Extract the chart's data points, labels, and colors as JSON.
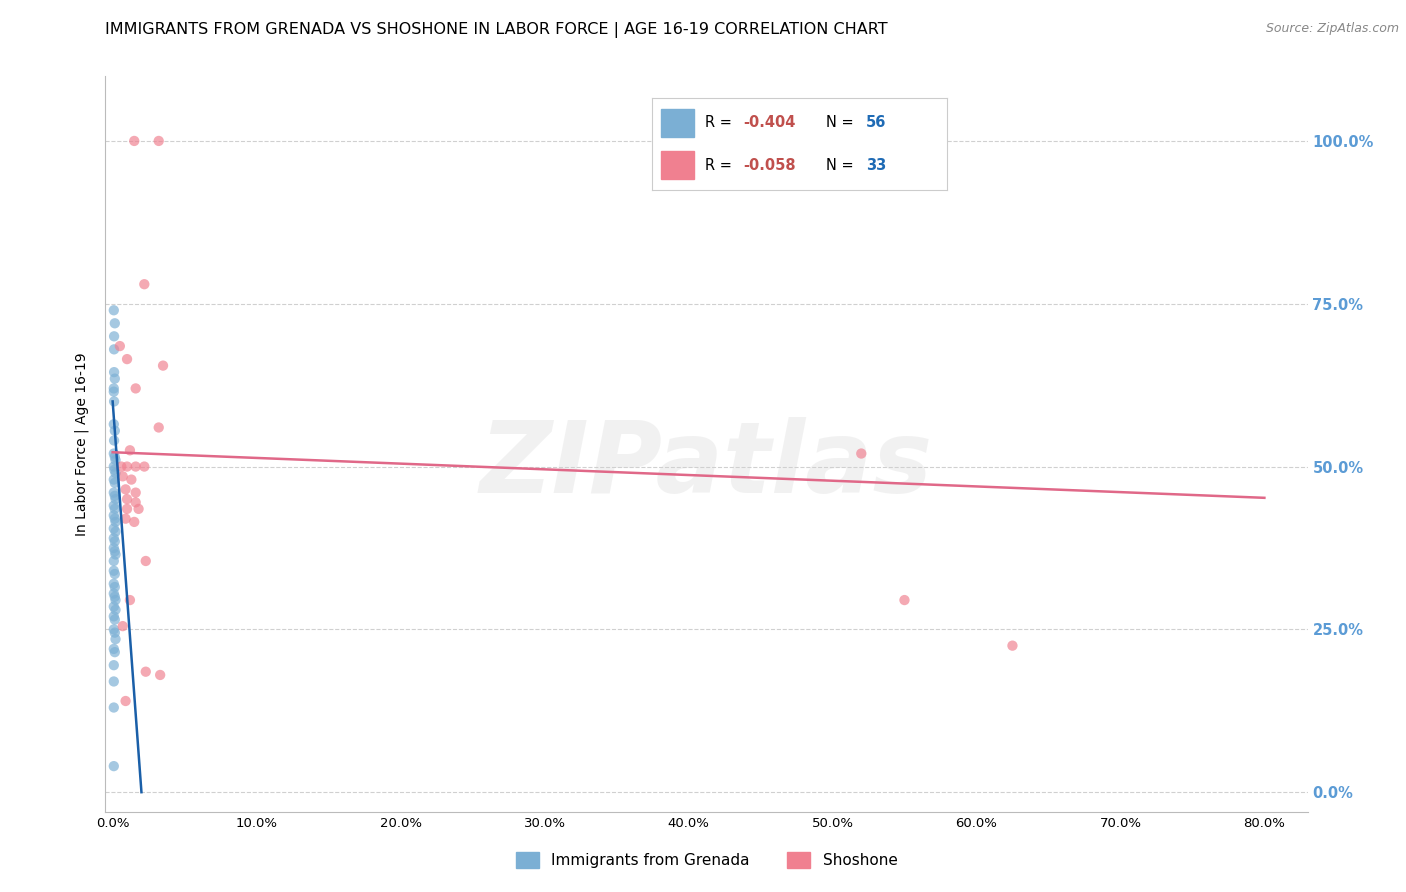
{
  "title": "IMMIGRANTS FROM GRENADA VS SHOSHONE IN LABOR FORCE | AGE 16-19 CORRELATION CHART",
  "source": "Source: ZipAtlas.com",
  "ylabel": "In Labor Force | Age 16-19",
  "xlabel_ticks": [
    "0.0%",
    "10.0%",
    "20.0%",
    "30.0%",
    "40.0%",
    "50.0%",
    "60.0%",
    "70.0%",
    "80.0%"
  ],
  "ylabel_ticks": [
    "0.0%",
    "25.0%",
    "50.0%",
    "75.0%",
    "100.0%"
  ],
  "xlim": [
    -0.005,
    0.83
  ],
  "ylim": [
    -0.03,
    1.1
  ],
  "watermark": "ZIPatlas",
  "grenada_dots": [
    [
      0.0008,
      0.74
    ],
    [
      0.0015,
      0.72
    ],
    [
      0.001,
      0.7
    ],
    [
      0.001,
      0.68
    ],
    [
      0.001,
      0.645
    ],
    [
      0.0015,
      0.635
    ],
    [
      0.0008,
      0.62
    ],
    [
      0.0008,
      0.615
    ],
    [
      0.001,
      0.6
    ],
    [
      0.0008,
      0.565
    ],
    [
      0.0015,
      0.555
    ],
    [
      0.001,
      0.54
    ],
    [
      0.0008,
      0.52
    ],
    [
      0.0015,
      0.515
    ],
    [
      0.002,
      0.51
    ],
    [
      0.0008,
      0.5
    ],
    [
      0.0012,
      0.495
    ],
    [
      0.002,
      0.49
    ],
    [
      0.0008,
      0.48
    ],
    [
      0.0015,
      0.475
    ],
    [
      0.0008,
      0.46
    ],
    [
      0.0015,
      0.455
    ],
    [
      0.002,
      0.45
    ],
    [
      0.0008,
      0.44
    ],
    [
      0.0015,
      0.435
    ],
    [
      0.0008,
      0.425
    ],
    [
      0.0015,
      0.42
    ],
    [
      0.002,
      0.415
    ],
    [
      0.0008,
      0.405
    ],
    [
      0.002,
      0.4
    ],
    [
      0.0008,
      0.39
    ],
    [
      0.0015,
      0.385
    ],
    [
      0.0008,
      0.375
    ],
    [
      0.0015,
      0.37
    ],
    [
      0.002,
      0.365
    ],
    [
      0.0008,
      0.355
    ],
    [
      0.0008,
      0.34
    ],
    [
      0.0015,
      0.335
    ],
    [
      0.0008,
      0.32
    ],
    [
      0.0015,
      0.315
    ],
    [
      0.0008,
      0.305
    ],
    [
      0.0015,
      0.3
    ],
    [
      0.002,
      0.295
    ],
    [
      0.0008,
      0.285
    ],
    [
      0.002,
      0.28
    ],
    [
      0.0008,
      0.27
    ],
    [
      0.0015,
      0.265
    ],
    [
      0.0008,
      0.25
    ],
    [
      0.0015,
      0.245
    ],
    [
      0.002,
      0.235
    ],
    [
      0.0008,
      0.22
    ],
    [
      0.0015,
      0.215
    ],
    [
      0.0008,
      0.195
    ],
    [
      0.0008,
      0.17
    ],
    [
      0.0008,
      0.13
    ],
    [
      0.0008,
      0.04
    ]
  ],
  "shoshone_dots": [
    [
      0.015,
      1.0
    ],
    [
      0.032,
      1.0
    ],
    [
      0.022,
      0.78
    ],
    [
      0.035,
      0.655
    ],
    [
      0.005,
      0.685
    ],
    [
      0.01,
      0.665
    ],
    [
      0.016,
      0.62
    ],
    [
      0.032,
      0.56
    ],
    [
      0.012,
      0.525
    ],
    [
      0.006,
      0.5
    ],
    [
      0.01,
      0.5
    ],
    [
      0.016,
      0.5
    ],
    [
      0.022,
      0.5
    ],
    [
      0.007,
      0.485
    ],
    [
      0.013,
      0.48
    ],
    [
      0.009,
      0.465
    ],
    [
      0.016,
      0.46
    ],
    [
      0.01,
      0.45
    ],
    [
      0.016,
      0.445
    ],
    [
      0.01,
      0.435
    ],
    [
      0.018,
      0.435
    ],
    [
      0.009,
      0.42
    ],
    [
      0.015,
      0.415
    ],
    [
      0.023,
      0.355
    ],
    [
      0.023,
      0.185
    ],
    [
      0.033,
      0.18
    ],
    [
      0.009,
      0.14
    ],
    [
      0.012,
      0.295
    ],
    [
      0.55,
      0.295
    ],
    [
      0.625,
      0.225
    ],
    [
      0.52,
      0.52
    ],
    [
      0.007,
      0.255
    ]
  ],
  "grenada_color": "#7bafd4",
  "shoshone_color": "#f08090",
  "grenada_line_color": "#1a5fa8",
  "shoshone_line_color": "#e06888",
  "dot_size": 55,
  "dot_alpha": 0.68,
  "grid_color": "#d0d0d0",
  "background_color": "#ffffff",
  "title_fontsize": 11.5,
  "axis_label_fontsize": 10,
  "tick_fontsize": 9.5,
  "right_tick_color": "#5b9bd5",
  "legend_r_color": "#c0504d",
  "legend_n_color": "#1f6bb5",
  "grenada_line": [
    [
      0.0,
      0.6
    ],
    [
      0.02,
      0.0
    ]
  ],
  "shoshone_line": [
    [
      0.0,
      0.522
    ],
    [
      0.8,
      0.452
    ]
  ]
}
